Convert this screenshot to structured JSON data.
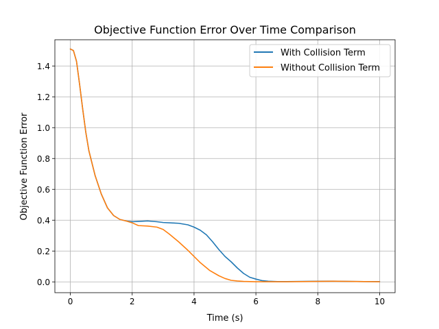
{
  "chart_data": {
    "type": "line",
    "title": "Objective Function Error Over Time Comparison",
    "xlabel": "Time (s)",
    "ylabel": "Objective Function Error",
    "xlim": [
      -0.5,
      10.5
    ],
    "ylim": [
      -0.07,
      1.57
    ],
    "xticks": [
      0,
      2,
      4,
      6,
      8,
      10
    ],
    "xtick_labels": [
      "0",
      "2",
      "4",
      "6",
      "8",
      "10"
    ],
    "yticks": [
      0.0,
      0.2,
      0.4,
      0.6,
      0.8,
      1.0,
      1.2,
      1.4
    ],
    "ytick_labels": [
      "0.0",
      "0.2",
      "0.4",
      "0.6",
      "0.8",
      "1.0",
      "1.2",
      "1.4"
    ],
    "grid": true,
    "legend_position": "top-right",
    "series": [
      {
        "name": "With Collision Term",
        "color": "#1f77b4",
        "x": [
          0,
          0.1,
          0.2,
          0.3,
          0.4,
          0.5,
          0.6,
          0.8,
          1.0,
          1.2,
          1.4,
          1.6,
          1.8,
          2.0,
          2.2,
          2.5,
          2.8,
          3.0,
          3.3,
          3.5,
          3.8,
          4.0,
          4.2,
          4.4,
          4.6,
          4.8,
          5.0,
          5.2,
          5.4,
          5.6,
          5.8,
          6.0,
          6.2,
          6.4,
          6.7,
          7.0,
          7.5,
          8.0,
          8.5,
          9.0,
          9.5,
          10.0
        ],
        "y": [
          1.51,
          1.5,
          1.43,
          1.28,
          1.12,
          0.97,
          0.85,
          0.69,
          0.57,
          0.48,
          0.43,
          0.405,
          0.395,
          0.39,
          0.392,
          0.395,
          0.39,
          0.385,
          0.382,
          0.38,
          0.37,
          0.355,
          0.335,
          0.305,
          0.26,
          0.21,
          0.165,
          0.13,
          0.09,
          0.055,
          0.03,
          0.018,
          0.008,
          0.004,
          0.002,
          0.002,
          0.003,
          0.004,
          0.005,
          0.003,
          0.002,
          0.002
        ]
      },
      {
        "name": "Without Collision Term",
        "color": "#ff7f0e",
        "x": [
          0,
          0.1,
          0.2,
          0.3,
          0.4,
          0.5,
          0.6,
          0.8,
          1.0,
          1.2,
          1.4,
          1.6,
          1.8,
          2.0,
          2.2,
          2.5,
          2.8,
          3.0,
          3.2,
          3.5,
          3.8,
          4.0,
          4.2,
          4.5,
          4.8,
          5.0,
          5.2,
          5.4,
          5.6,
          5.8,
          6.0,
          6.5,
          7.0,
          7.5,
          8.0,
          8.5,
          9.0,
          9.5,
          10.0
        ],
        "y": [
          1.51,
          1.5,
          1.43,
          1.28,
          1.12,
          0.97,
          0.85,
          0.69,
          0.57,
          0.48,
          0.43,
          0.405,
          0.395,
          0.383,
          0.365,
          0.362,
          0.355,
          0.34,
          0.31,
          0.26,
          0.205,
          0.165,
          0.125,
          0.075,
          0.04,
          0.022,
          0.01,
          0.006,
          0.003,
          0.002,
          0.001,
          0.001,
          0.001,
          0.002,
          0.003,
          0.004,
          0.003,
          0.002,
          0.001
        ]
      }
    ]
  }
}
